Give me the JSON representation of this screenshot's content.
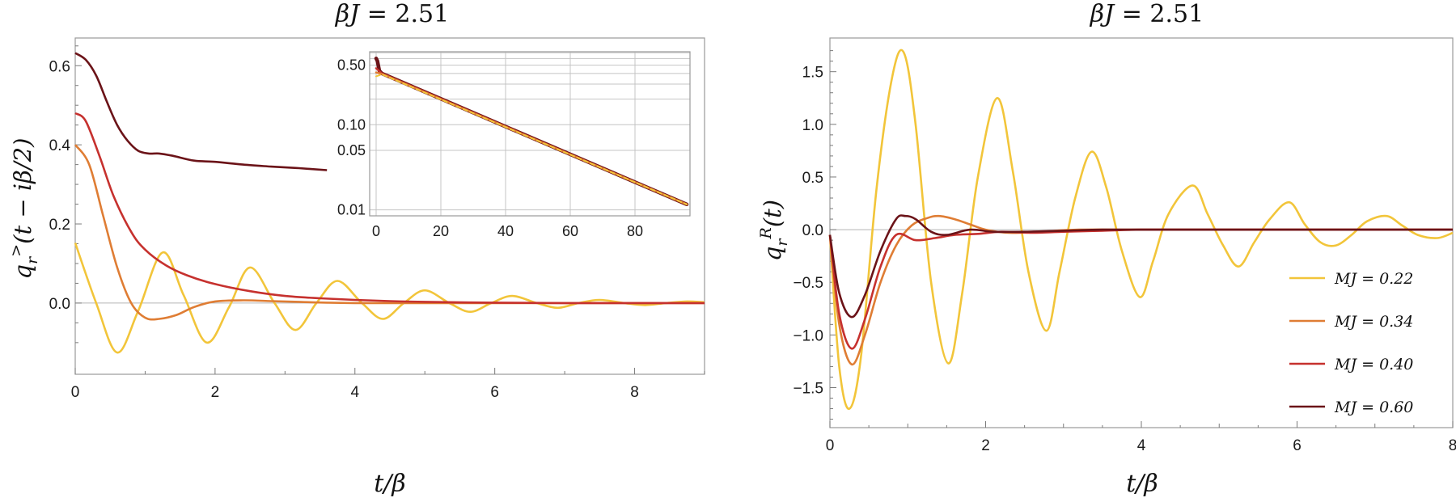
{
  "chart_data": [
    {
      "type": "line",
      "title": "βJ = 2.51",
      "ylabel": "q_r^>(t − iβ/2)",
      "xlabel": "t/β",
      "xlim": [
        0,
        9
      ],
      "ylim": [
        -0.18,
        0.67
      ],
      "xticks": [
        0,
        2,
        4,
        6,
        8
      ],
      "yticks": [
        0.0,
        0.2,
        0.4,
        0.6
      ],
      "ytick_labels": [
        "0.0",
        "0.2",
        "0.4",
        "0.6"
      ],
      "grid": false,
      "series": [
        {
          "legend_label": "MJ = 0.22",
          "color": "#f2c53a",
          "x": [
            0,
            0.3,
            0.6,
            0.9,
            1.25,
            1.55,
            1.88,
            2.2,
            2.5,
            2.85,
            3.15,
            3.45,
            3.75,
            4.1,
            4.4,
            4.7,
            5.0,
            5.35,
            5.65,
            5.95,
            6.25,
            6.6,
            6.9,
            7.2,
            7.5,
            7.85,
            8.15,
            8.45,
            8.75,
            9.0
          ],
          "values": [
            0.152,
            0.0,
            -0.125,
            -0.02,
            0.128,
            0.02,
            -0.1,
            -0.01,
            0.09,
            0.0,
            -0.068,
            0.0,
            0.056,
            0.0,
            -0.04,
            0.0,
            0.032,
            0.0,
            -0.022,
            0.0,
            0.018,
            0.0,
            -0.012,
            0.0,
            0.008,
            0.0,
            -0.005,
            0.0,
            0.004,
            0.002
          ]
        },
        {
          "legend_label": "MJ = 0.34",
          "color": "#df7d34",
          "x": [
            0,
            0.2,
            0.4,
            0.6,
            0.8,
            1.0,
            1.2,
            1.45,
            1.7,
            2.0,
            2.4,
            2.8,
            3.2,
            3.6,
            4.0,
            5.0,
            6.0,
            7.0,
            8.0,
            9.0
          ],
          "values": [
            0.4,
            0.35,
            0.22,
            0.09,
            0.0,
            -0.037,
            -0.04,
            -0.03,
            -0.01,
            0.004,
            0.007,
            0.005,
            0.003,
            0.001,
            0.0,
            0.0,
            0.0,
            0.0,
            0.0,
            0.0
          ]
        },
        {
          "legend_label": "MJ = 0.40",
          "color": "#c6312e",
          "x": [
            0,
            0.15,
            0.35,
            0.55,
            0.8,
            1.0,
            1.3,
            1.6,
            2.0,
            2.5,
            3.0,
            3.5,
            4.0,
            4.5,
            5.0,
            6.0,
            7.0,
            8.0,
            9.0
          ],
          "values": [
            0.48,
            0.46,
            0.37,
            0.27,
            0.18,
            0.135,
            0.095,
            0.07,
            0.048,
            0.03,
            0.018,
            0.012,
            0.008,
            0.005,
            0.003,
            0.001,
            0.0,
            0.0,
            0.0
          ]
        },
        {
          "legend_label": "MJ = 0.60",
          "color": "#6b1318",
          "x": [
            0,
            0.15,
            0.3,
            0.45,
            0.6,
            0.75,
            0.9,
            1.05,
            1.2,
            1.4,
            1.7,
            2.0,
            2.4,
            2.8,
            3.2,
            3.6
          ],
          "values": [
            0.632,
            0.615,
            0.575,
            0.51,
            0.45,
            0.41,
            0.385,
            0.378,
            0.378,
            0.372,
            0.36,
            0.357,
            0.35,
            0.345,
            0.341,
            0.336
          ]
        }
      ]
    },
    {
      "type": "line",
      "inset": true,
      "yscale": "log",
      "xlim": [
        -2,
        97
      ],
      "ylim": [
        0.0085,
        0.72
      ],
      "xticks": [
        0,
        20,
        40,
        60,
        80
      ],
      "yticks": [
        0.01,
        0.05,
        0.1,
        0.5
      ],
      "ytick_labels": [
        "0.01",
        "0.05",
        "0.10",
        "0.50"
      ],
      "grid": true,
      "grid_y": [
        0.01,
        0.05,
        0.1,
        0.2,
        0.3,
        0.4,
        0.5,
        0.6,
        0.7
      ],
      "grid_x": [
        0,
        20,
        40,
        60,
        80
      ],
      "series": [
        {
          "legend_label": "MJ = 0.60",
          "color": "#6b1318",
          "x": [
            0,
            0.4,
            1.0,
            1.8,
            96
          ],
          "values": [
            0.6,
            0.56,
            0.43,
            0.4,
            0.0116
          ]
        },
        {
          "legend_label": "MJ = 0.40",
          "color": "#c6312e",
          "x": [
            0,
            1.8,
            96
          ],
          "values": [
            0.46,
            0.4,
            0.0116
          ]
        },
        {
          "legend_label": "MJ = 0.34",
          "color": "#df7d34",
          "x": [
            0,
            1.8,
            96
          ],
          "values": [
            0.41,
            0.395,
            0.0116
          ]
        },
        {
          "legend_label": "MJ = 0.22",
          "color": "#f2c53a",
          "x": [
            0,
            1.8,
            96
          ],
          "values": [
            0.37,
            0.39,
            0.0116
          ],
          "dashed": true
        }
      ]
    },
    {
      "type": "line",
      "title": "βJ = 2.51",
      "ylabel": "q_r^R(t)",
      "xlabel": "t/β",
      "xlim": [
        0,
        8
      ],
      "ylim": [
        -1.88,
        1.82
      ],
      "xticks": [
        0,
        2,
        4,
        6,
        8
      ],
      "yticks": [
        -1.5,
        -1.0,
        -0.5,
        0.0,
        0.5,
        1.0,
        1.5
      ],
      "ytick_labels": [
        "−1.5",
        "−1.0",
        "−0.5",
        "0.0",
        "0.5",
        "1.0",
        "1.5"
      ],
      "grid": false,
      "legend_position": "bottom-right",
      "series": [
        {
          "name": "MJ = 0.22",
          "color": "#f2c53a",
          "x": [
            0,
            0.12,
            0.25,
            0.4,
            0.6,
            0.8,
            0.95,
            1.1,
            1.3,
            1.52,
            1.7,
            1.9,
            2.15,
            2.35,
            2.55,
            2.78,
            2.95,
            3.15,
            3.36,
            3.55,
            3.75,
            3.98,
            4.15,
            4.35,
            4.66,
            4.85,
            5.05,
            5.25,
            5.45,
            5.65,
            5.9,
            6.1,
            6.3,
            6.5,
            6.7,
            6.9,
            7.15,
            7.35,
            7.55,
            7.8,
            8.0
          ],
          "values": [
            -0.05,
            -1.3,
            -1.7,
            -1.2,
            0.4,
            1.45,
            1.68,
            1.0,
            -0.5,
            -1.27,
            -0.6,
            0.5,
            1.25,
            0.55,
            -0.4,
            -0.96,
            -0.4,
            0.3,
            0.74,
            0.4,
            -0.2,
            -0.64,
            -0.3,
            0.15,
            0.42,
            0.15,
            -0.15,
            -0.35,
            -0.12,
            0.1,
            0.26,
            0.05,
            -0.12,
            -0.15,
            -0.05,
            0.08,
            0.13,
            0.04,
            -0.05,
            -0.08,
            -0.03
          ]
        },
        {
          "name": "MJ = 0.34",
          "color": "#df7d34",
          "x": [
            0,
            0.12,
            0.28,
            0.45,
            0.65,
            0.85,
            1.05,
            1.25,
            1.4,
            1.6,
            1.8,
            2.0,
            2.3,
            2.7,
            3.2,
            4.0,
            5.0,
            6.0,
            7.0,
            8.0
          ],
          "values": [
            -0.05,
            -0.9,
            -1.28,
            -1.0,
            -0.5,
            -0.15,
            0.04,
            0.11,
            0.13,
            0.1,
            0.05,
            0.0,
            -0.03,
            -0.02,
            0.0,
            0.0,
            0.0,
            0.0,
            0.0,
            0.0
          ]
        },
        {
          "name": "MJ = 0.40",
          "color": "#c6312e",
          "x": [
            0,
            0.12,
            0.28,
            0.45,
            0.65,
            0.85,
            1.1,
            1.35,
            1.6,
            1.9,
            2.2,
            2.6,
            3.0,
            3.5,
            4.0,
            5.0,
            6.0,
            7.0,
            8.0
          ],
          "values": [
            -0.05,
            -0.8,
            -1.13,
            -0.85,
            -0.35,
            -0.05,
            -0.1,
            -0.08,
            -0.05,
            -0.04,
            -0.02,
            -0.03,
            -0.02,
            -0.01,
            0.0,
            0.0,
            0.0,
            0.0,
            0.0
          ]
        },
        {
          "name": "MJ = 0.60",
          "color": "#6b1318",
          "x": [
            0,
            0.12,
            0.28,
            0.45,
            0.65,
            0.85,
            0.97,
            1.1,
            1.3,
            1.5,
            1.8,
            2.1,
            2.5,
            3.0,
            3.5,
            4.0,
            5.0,
            6.0,
            7.0,
            8.0
          ],
          "values": [
            -0.05,
            -0.6,
            -0.83,
            -0.62,
            -0.2,
            0.1,
            0.13,
            0.1,
            -0.02,
            -0.05,
            0.0,
            -0.02,
            -0.02,
            -0.01,
            0.0,
            0.0,
            0.0,
            0.0,
            0.0,
            0.0
          ]
        }
      ]
    }
  ]
}
